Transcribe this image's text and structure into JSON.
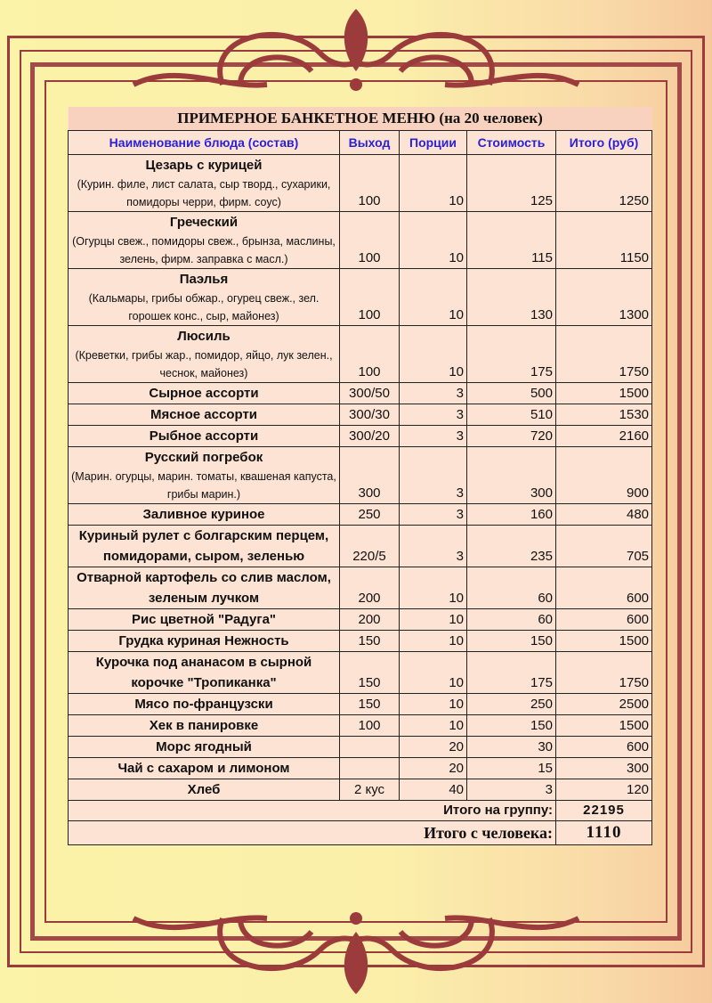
{
  "title": "ПРИМЕРНОЕ БАНКЕТНОЕ МЕНЮ (на 20 человек)",
  "columns": [
    "Наименование блюда (состав)",
    "Выход",
    "Порции",
    "Стоимость",
    "Итого (руб)"
  ],
  "rows": [
    {
      "dish": "Цезарь с курицей",
      "composition": "(Курин. филе, лист салата, сыр творд., сухарики, помидоры черри, фирм. соус)",
      "output": "100",
      "portions": "10",
      "price": "125",
      "total": "1250"
    },
    {
      "dish": "Греческий",
      "composition": "(Огурцы свеж., помидоры свеж., брынза, маслины, зелень, фирм. заправка с масл.)",
      "output": "100",
      "portions": "10",
      "price": "115",
      "total": "1150"
    },
    {
      "dish": "Паэлья",
      "composition": "(Кальмары, грибы обжар., огурец свеж., зел. горошек конс., сыр, майонез)",
      "output": "100",
      "portions": "10",
      "price": "130",
      "total": "1300"
    },
    {
      "dish": "Люсиль",
      "composition": "(Креветки, грибы жар., помидор, яйцо, лук зелен., чеснок, майонез)",
      "output": "100",
      "portions": "10",
      "price": "175",
      "total": "1750"
    },
    {
      "dish": "Сырное ассорти",
      "composition": "",
      "output": "300/50",
      "portions": "3",
      "price": "500",
      "total": "1500"
    },
    {
      "dish": "Мясное ассорти",
      "composition": "",
      "output": "300/30",
      "portions": "3",
      "price": "510",
      "total": "1530"
    },
    {
      "dish": "Рыбное ассорти",
      "composition": "",
      "output": "300/20",
      "portions": "3",
      "price": "720",
      "total": "2160"
    },
    {
      "dish": "Русский погребок",
      "composition": "(Марин. огурцы, марин. томаты, квашеная капуста, грибы марин.)",
      "output": "300",
      "portions": "3",
      "price": "300",
      "total": "900"
    },
    {
      "dish": "Заливное куриное",
      "composition": "",
      "output": "250",
      "portions": "3",
      "price": "160",
      "total": "480"
    },
    {
      "dish": "Куриный рулет с болгарским перцем, помидорами, сыром, зеленью",
      "composition": "",
      "output": "220/5",
      "portions": "3",
      "price": "235",
      "total": "705"
    },
    {
      "dish": "Отварной картофель со слив маслом, зеленым лучком",
      "composition": "",
      "output": "200",
      "portions": "10",
      "price": "60",
      "total": "600"
    },
    {
      "dish": "Рис цветной \"Радуга\"",
      "composition": "",
      "output": "200",
      "portions": "10",
      "price": "60",
      "total": "600"
    },
    {
      "dish": "Грудка куриная Нежность",
      "composition": "",
      "output": "150",
      "portions": "10",
      "price": "150",
      "total": "1500"
    },
    {
      "dish": "Курочка под ананасом в сырной корочке \"Тропиканка\"",
      "composition": "",
      "output": "150",
      "portions": "10",
      "price": "175",
      "total": "1750"
    },
    {
      "dish": "Мясо по-французски",
      "composition": "",
      "output": "150",
      "portions": "10",
      "price": "250",
      "total": "2500"
    },
    {
      "dish": "Хек в панировке",
      "composition": "",
      "output": "100",
      "portions": "10",
      "price": "150",
      "total": "1500"
    },
    {
      "dish": "Морс ягодный",
      "composition": "",
      "output": "",
      "portions": "20",
      "price": "30",
      "total": "600"
    },
    {
      "dish": "Чай с сахаром и лимоном",
      "composition": "",
      "output": "",
      "portions": "20",
      "price": "15",
      "total": "300"
    },
    {
      "dish": "Хлеб",
      "composition": "",
      "output": "2 кус",
      "portions": "40",
      "price": "3",
      "total": "120"
    }
  ],
  "totals": {
    "group_label": "Итого на группу:",
    "group_value": "22195",
    "person_label": "Итого с человека:",
    "person_value": "1110"
  },
  "colors": {
    "frame": "#9c3b3b",
    "header_text": "#2c1fd6",
    "title_text": "#8b1a1a",
    "table_bg": "#fde3d4"
  }
}
